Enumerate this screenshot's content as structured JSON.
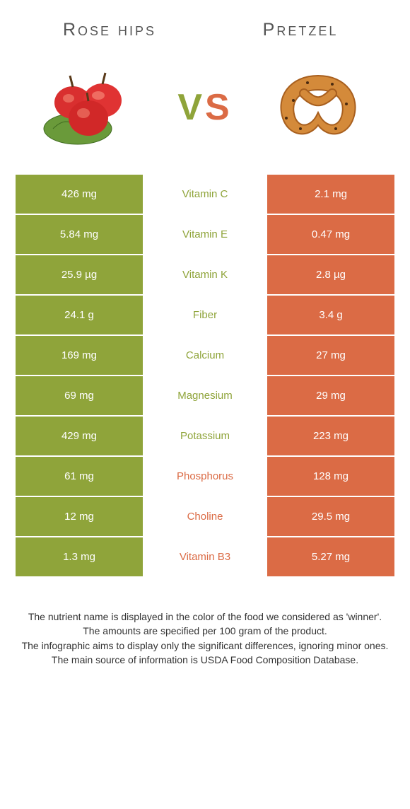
{
  "colors": {
    "left": "#8fa43a",
    "right": "#db6b45",
    "title": "#555555",
    "text": "#333333",
    "white": "#ffffff"
  },
  "titles": {
    "left": "Rose hips",
    "right": "Pretzel"
  },
  "vs": {
    "v": "V",
    "s": "S"
  },
  "icons": {
    "left": "rose-hips",
    "right": "pretzel"
  },
  "rows": [
    {
      "nutrient": "Vitamin C",
      "left": "426 mg",
      "right": "2.1 mg",
      "winner": "left"
    },
    {
      "nutrient": "Vitamin E",
      "left": "5.84 mg",
      "right": "0.47 mg",
      "winner": "left"
    },
    {
      "nutrient": "Vitamin K",
      "left": "25.9 µg",
      "right": "2.8 µg",
      "winner": "left"
    },
    {
      "nutrient": "Fiber",
      "left": "24.1 g",
      "right": "3.4 g",
      "winner": "left"
    },
    {
      "nutrient": "Calcium",
      "left": "169 mg",
      "right": "27 mg",
      "winner": "left"
    },
    {
      "nutrient": "Magnesium",
      "left": "69 mg",
      "right": "29 mg",
      "winner": "left"
    },
    {
      "nutrient": "Potassium",
      "left": "429 mg",
      "right": "223 mg",
      "winner": "left"
    },
    {
      "nutrient": "Phosphorus",
      "left": "61 mg",
      "right": "128 mg",
      "winner": "right"
    },
    {
      "nutrient": "Choline",
      "left": "12 mg",
      "right": "29.5 mg",
      "winner": "right"
    },
    {
      "nutrient": "Vitamin B3",
      "left": "1.3 mg",
      "right": "5.27 mg",
      "winner": "right"
    }
  ],
  "footer": {
    "l1": "The nutrient name is displayed in the color of the food we considered as 'winner'.",
    "l2": "The amounts are specified per 100 gram of the product.",
    "l3": "The infographic aims to display only the significant differences, ignoring minor ones.",
    "l4": "The main source of information is USDA Food Composition Database."
  }
}
